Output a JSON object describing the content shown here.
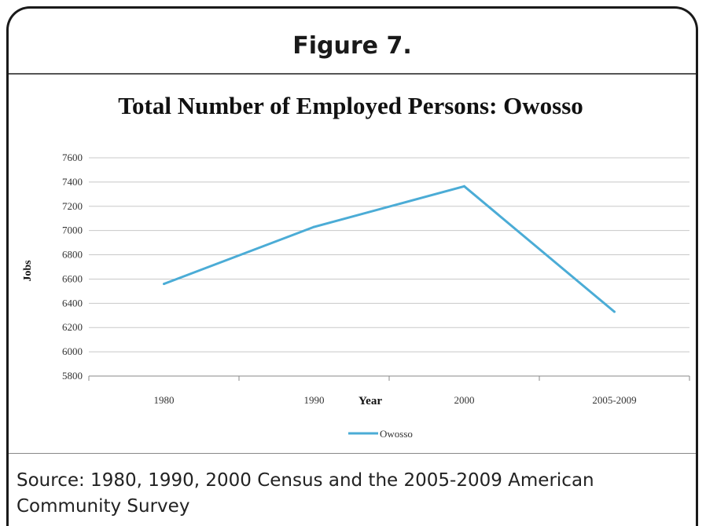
{
  "figure_label": "Figure 7.",
  "source_text": "Source: 1980, 1990, 2000 Census and the 2005-2009 American Community Survey",
  "colors": {
    "line": "#4bacd6",
    "frame": "#1a1a1a",
    "grid": "#c8c8c8"
  },
  "chart_data": {
    "type": "line",
    "title": "Total Number of Employed Persons: Owosso",
    "xlabel": "Year",
    "ylabel": "Jobs",
    "categories": [
      "1980",
      "1990",
      "2000",
      "2005-2009"
    ],
    "series": [
      {
        "name": "Owosso",
        "values": [
          6560,
          7030,
          7365,
          6330
        ]
      }
    ],
    "ylim": [
      5800,
      7600
    ],
    "yticks": [
      "7600",
      "7400",
      "7200",
      "7000",
      "6800",
      "6600",
      "6400",
      "6200",
      "6000",
      "5800"
    ],
    "grid": true,
    "legend": "bottom"
  }
}
